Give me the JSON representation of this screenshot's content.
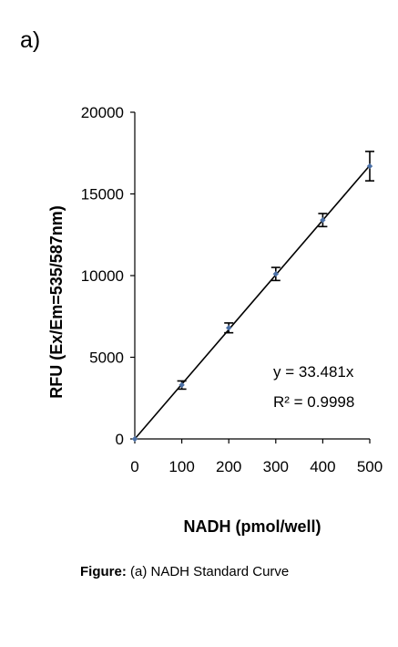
{
  "panel_label": "a)",
  "caption": {
    "prefix": "Figure:",
    "text": "(a) NADH Standard Curve"
  },
  "chart_data": {
    "type": "scatter",
    "title": "",
    "xlabel": "NADH (pmol/well)",
    "ylabel": "RFU (Ex/Em=535/587nm)",
    "xlim": [
      0,
      500
    ],
    "ylim": [
      0,
      20000
    ],
    "x_ticks": [
      0,
      100,
      200,
      300,
      400,
      500
    ],
    "y_ticks": [
      0,
      5000,
      10000,
      15000,
      20000
    ],
    "grid": false,
    "series": [
      {
        "x": [
          0,
          100,
          200,
          300,
          400,
          500
        ],
        "y": [
          0,
          3300,
          6800,
          10100,
          13400,
          16700
        ],
        "error": [
          0,
          250,
          300,
          400,
          400,
          900
        ],
        "marker_color": "#4a6fa5"
      }
    ],
    "trendline": {
      "slope": 33.481,
      "intercept": 0,
      "color": "#000000"
    },
    "annotations": {
      "equation": "y = 33.481x",
      "r_squared": "R² = 0.9998"
    }
  }
}
